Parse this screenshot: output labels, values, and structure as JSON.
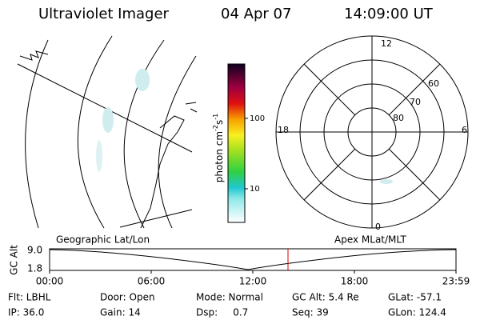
{
  "header": {
    "instrument": "Ultraviolet Imager",
    "date": "04 Apr 07",
    "time": "14:09:00 UT"
  },
  "colorbar": {
    "label": {
      "unit": "photon cm",
      "exp1": "-2",
      "unit2": "s",
      "exp2": "-1"
    },
    "ticks": [
      "100",
      "10"
    ]
  },
  "polar": {
    "mlt_labels": [
      "12",
      "18",
      "6",
      "0"
    ],
    "lat_labels": [
      "60",
      "70",
      "80"
    ]
  },
  "timeline": {
    "axis_label": "GC Alt",
    "y_labels": [
      "9.0",
      "1.8"
    ],
    "left_caption": "Geographic Lat/Lon",
    "right_caption": "Apex MLat/MLT",
    "time_labels": [
      "00:00",
      "06:00",
      "12:00",
      "18:00",
      "23:59"
    ]
  },
  "footer": {
    "rows": [
      [
        "Flt: LBHL",
        "Door: Open",
        "Mode: Normal",
        "GC Alt: 5.4 Re",
        "GLat: -57.1"
      ],
      [
        "IP: 36.0",
        "Gain: 14",
        "Dsp:     0.7",
        "Seq: 39",
        "GLon: 124.4"
      ]
    ]
  }
}
